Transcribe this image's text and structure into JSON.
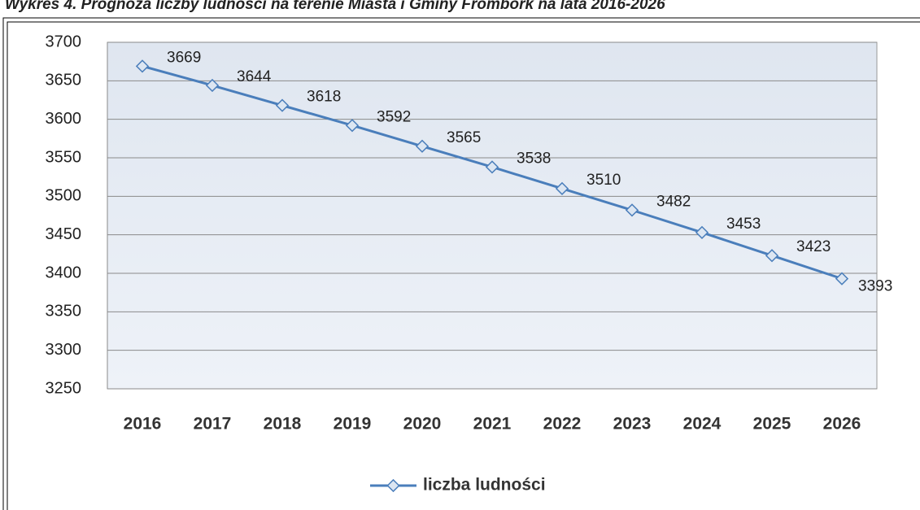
{
  "chart_data": {
    "type": "line",
    "title": "Wykres 4. Prognoza liczby ludności na terenie Miasta i Gminy Frombork na lata 2016-2026",
    "categories": [
      "2016",
      "2017",
      "2018",
      "2019",
      "2020",
      "2021",
      "2022",
      "2023",
      "2024",
      "2025",
      "2026"
    ],
    "series": [
      {
        "name": "liczba ludności",
        "color": "#4a7ebb",
        "values": [
          3669,
          3644,
          3618,
          3592,
          3565,
          3538,
          3510,
          3482,
          3453,
          3423,
          3393
        ]
      }
    ],
    "ylim": [
      3250,
      3700
    ],
    "yticks": [
      3250,
      3300,
      3350,
      3400,
      3450,
      3500,
      3550,
      3600,
      3650,
      3700
    ],
    "grid": true,
    "legend": "bottom"
  }
}
